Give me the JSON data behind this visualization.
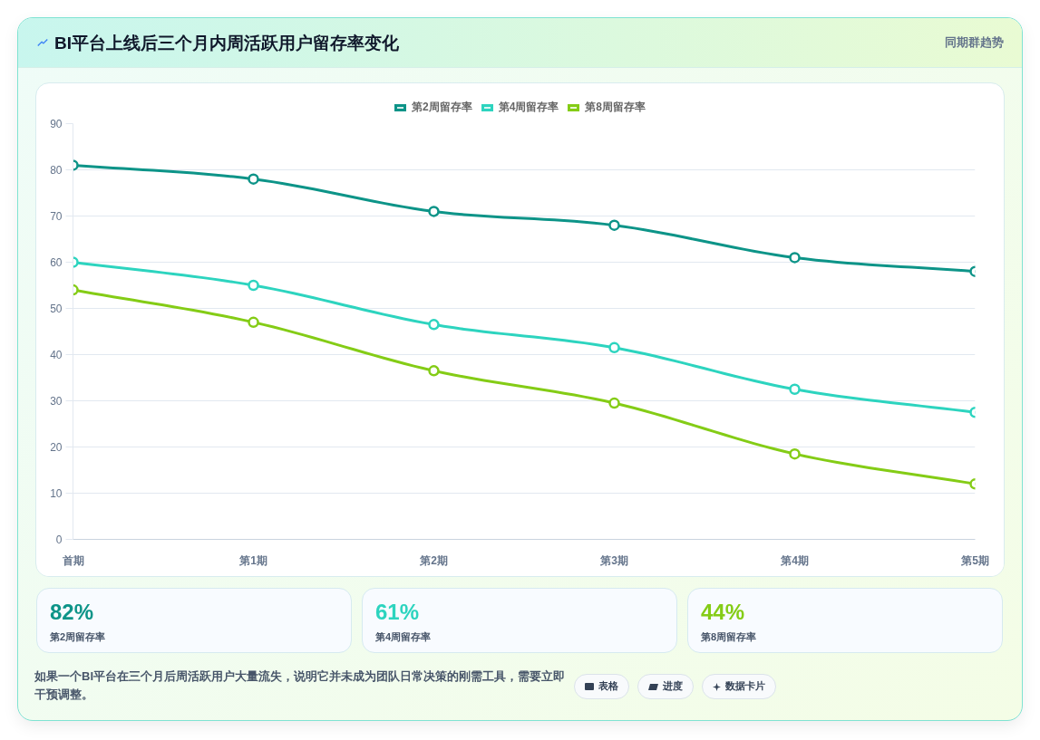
{
  "chart_data": {
    "type": "line",
    "title": "BI平台上线后三个月内周活跃用户留存率变化",
    "subtitle": "同期群趋势",
    "categories": [
      "首期",
      "第1期",
      "第2期",
      "第3期",
      "第4期",
      "第5期"
    ],
    "series": [
      {
        "name": "第2周留存率",
        "color": "#0d9488",
        "values": [
          81,
          78,
          71,
          68,
          61,
          58
        ]
      },
      {
        "name": "第4周留存率",
        "color": "#2dd4bf",
        "values": [
          60,
          55,
          46.5,
          41.5,
          32.5,
          27.5
        ]
      },
      {
        "name": "第8周留存率",
        "color": "#84cc16",
        "values": [
          54,
          47,
          36.5,
          29.5,
          18.5,
          12
        ]
      }
    ],
    "ylim": [
      0,
      90
    ],
    "yticks": [
      0,
      10,
      20,
      30,
      40,
      50,
      60,
      70,
      80,
      90
    ],
    "grid": "y",
    "legend": "top",
    "marker": "circle",
    "line_style": "solid",
    "annotations": [
      "82%",
      "第2周留存率",
      "61%",
      "第4周留存率",
      "44%",
      "第8周留存率",
      "如果一个BI平台在三个月后周活跃用户大量流失，说明它并未成为团队日常决策的刚需工具，需要立即干预调整。",
      "表格",
      "进度",
      "数据卡片"
    ]
  }
}
